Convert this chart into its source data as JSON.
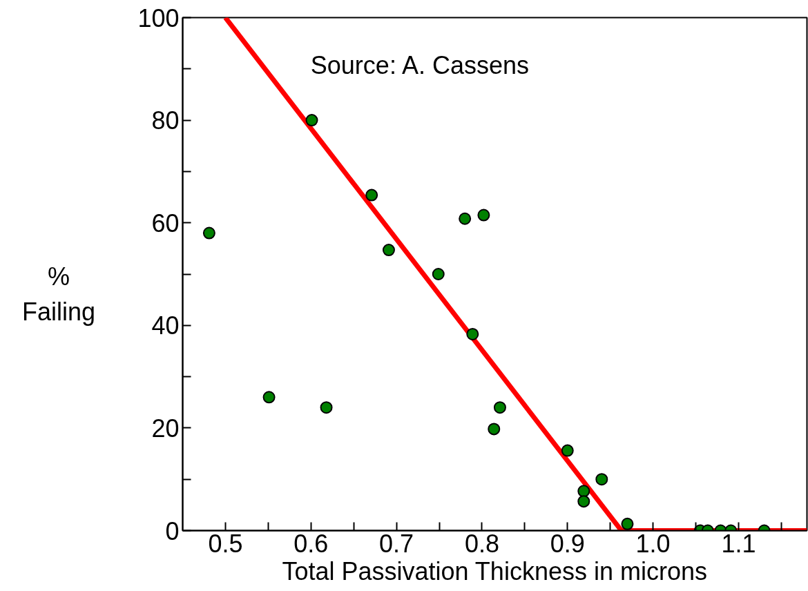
{
  "chart_data": {
    "type": "scatter",
    "xlabel": "Total Passivation Thickness in microns",
    "ylabel": "%\nFailing",
    "annotations": [
      "Source: A. Cassens"
    ],
    "xlim": [
      0.45,
      1.18
    ],
    "ylim": [
      0,
      100
    ],
    "xticks": [
      {
        "value": 0.5,
        "label": "0.5"
      },
      {
        "value": 0.55,
        "label": null
      },
      {
        "value": 0.6,
        "label": "0.6"
      },
      {
        "value": 0.65,
        "label": null
      },
      {
        "value": 0.7,
        "label": "0.7"
      },
      {
        "value": 0.75,
        "label": null
      },
      {
        "value": 0.8,
        "label": "0.8"
      },
      {
        "value": 0.85,
        "label": null
      },
      {
        "value": 0.9,
        "label": "0.9"
      },
      {
        "value": 0.95,
        "label": null
      },
      {
        "value": 1.0,
        "label": "1.0"
      },
      {
        "value": 1.05,
        "label": null
      },
      {
        "value": 1.1,
        "label": "1.1"
      },
      {
        "value": 1.15,
        "label": null
      }
    ],
    "yticks": [
      0,
      {
        "value": 10,
        "label": null
      },
      20,
      {
        "value": 30,
        "label": null
      },
      40,
      {
        "value": 50,
        "label": null
      },
      60,
      {
        "value": 70,
        "label": null
      },
      80,
      {
        "value": 90,
        "label": null
      },
      100
    ],
    "grid": false,
    "series": [
      {
        "type": "line",
        "marker": "none",
        "color": "#ff0000",
        "x": [
          0.5,
          0.963,
          1.18
        ],
        "values": [
          100,
          0,
          0
        ]
      },
      {
        "marker": "circle",
        "color": "#008000",
        "x": [
          0.481,
          0.551,
          0.601,
          0.618,
          0.671,
          0.691,
          0.749,
          0.78,
          0.802,
          0.789,
          0.821,
          0.814,
          0.9,
          0.919,
          0.919,
          0.94,
          0.97,
          1.055,
          1.064,
          1.079,
          1.091,
          1.13
        ],
        "values": [
          58,
          26,
          80,
          24,
          65.4,
          54.7,
          50,
          60.8,
          61.5,
          38.3,
          24,
          19.8,
          15.6,
          7.7,
          5.7,
          10,
          1.3,
          0,
          0,
          0,
          0,
          0
        ]
      }
    ]
  }
}
